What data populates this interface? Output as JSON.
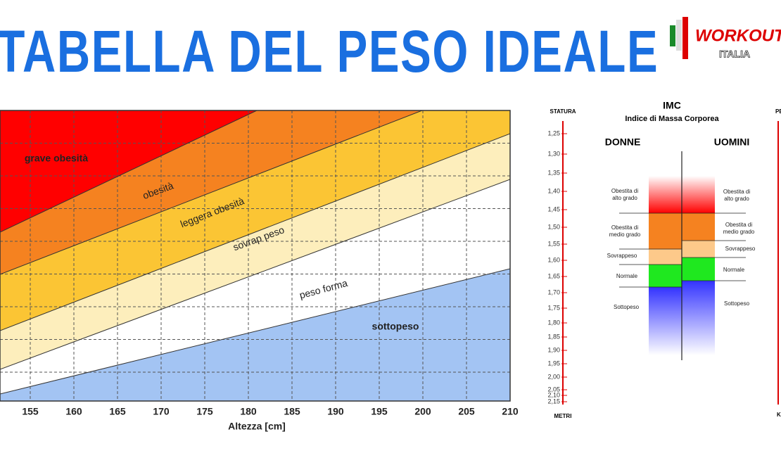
{
  "header": {
    "title": "TABELLA DEL PESO IDEALE",
    "logo": {
      "name": "WORKOUT",
      "sub": "ITALIA"
    }
  },
  "weight_chart": {
    "x_ticks": [
      "155",
      "160",
      "165",
      "170",
      "175",
      "180",
      "185",
      "190",
      "195",
      "200",
      "205",
      "210"
    ],
    "x_label": "Altezza [cm]",
    "bands": [
      "grave obesità",
      "obesità",
      "leggera obesità",
      "sovrap peso",
      "peso forma",
      "sottopeso"
    ]
  },
  "bmi_panel": {
    "height_label": "STATURA",
    "height_unit": "METRI",
    "height_ticks": [
      "1,25",
      "1,30",
      "1,35",
      "1,40",
      "1,45",
      "1,50",
      "1,55",
      "1,60",
      "1,65",
      "1,70",
      "1,75",
      "1,80",
      "1,85",
      "1,90",
      "1,95",
      "2,00",
      "2,05",
      "2,10",
      "2,15"
    ],
    "title": "IMC",
    "subtitle": "Indice di Massa Corporea",
    "women": {
      "label": "DONNE",
      "zones": [
        [
          "Obestita di",
          "alto grado"
        ],
        [
          "Obestita di",
          "medio grado"
        ],
        [
          "Sovrappeso"
        ],
        [
          "Normale"
        ],
        [
          "Sottopeso"
        ]
      ]
    },
    "men": {
      "label": "UOMINI",
      "zones": [
        [
          "Obestita di",
          "alto grado"
        ],
        [
          "Obestita di",
          "medio grado"
        ],
        [
          "Sovrappeso"
        ],
        [
          "Normale"
        ],
        [
          "Sottopeso"
        ]
      ]
    },
    "weight_label": "PES",
    "weight_unit": "K"
  }
}
